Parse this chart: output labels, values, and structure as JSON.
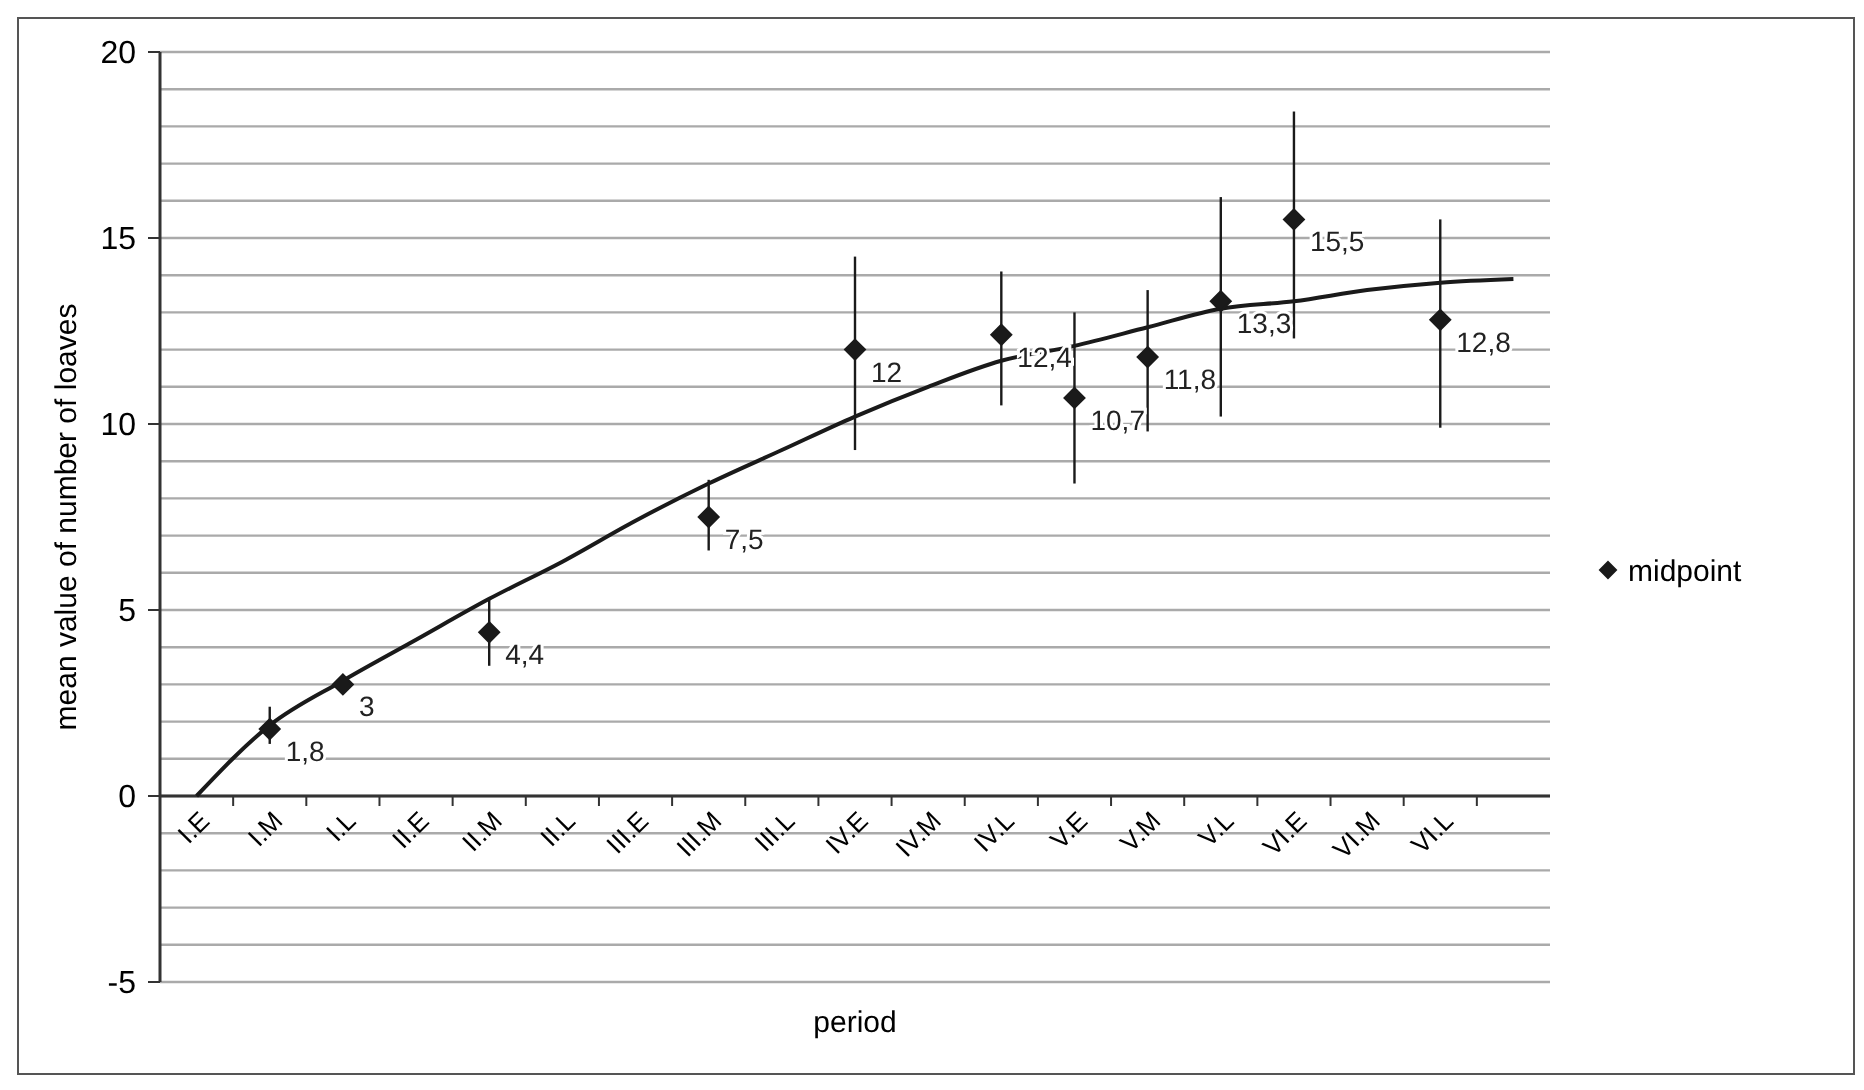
{
  "chart_data": {
    "type": "scatter",
    "xlabel": "period",
    "ylabel": "mean value of number of loaves",
    "categories": [
      "I.E",
      "I.M",
      "I.L",
      "II.E",
      "II.M",
      "II.L",
      "III.E",
      "III.M",
      "III.L",
      "IV.E",
      "IV.M",
      "IV.L",
      "V.E",
      "V.M",
      "V.L",
      "VI.E",
      "VI.M",
      "VI.L",
      null
    ],
    "series": [
      {
        "name": "midpoint",
        "marker": "diamond",
        "color": "#1a1a1a",
        "x": [
          "I.M",
          "I.L",
          "II.M",
          "III.M",
          "IV.E",
          "IV.L",
          "V.E",
          "V.M",
          "V.L",
          "VI.E",
          "VI.L"
        ],
        "values": [
          1.8,
          3,
          4.4,
          7.5,
          12,
          12.4,
          10.7,
          11.8,
          13.3,
          15.5,
          12.8
        ],
        "errors": [
          [
            1.4,
            2.4
          ],
          null,
          [
            3.5,
            5.3
          ],
          [
            6.6,
            8.5
          ],
          [
            9.3,
            14.5
          ],
          [
            10.5,
            14.1
          ],
          [
            8.4,
            13.0
          ],
          [
            9.8,
            13.6
          ],
          [
            10.2,
            16.1
          ],
          [
            12.3,
            18.4
          ],
          [
            9.9,
            15.5
          ]
        ],
        "value_labels": [
          "1,8",
          "3",
          "4,4",
          "7,5",
          "12",
          "12,4",
          "10,7",
          "11,8",
          "13,3",
          "15,5",
          "12,8"
        ]
      },
      {
        "type": "line",
        "color": "#1a1a1a",
        "values": [
          0,
          1.9,
          3.1,
          4.2,
          5.3,
          6.3,
          7.4,
          8.4,
          9.3,
          10.2,
          11.0,
          11.7,
          12.1,
          12.6,
          13.1,
          13.3,
          13.6,
          13.8,
          13.9
        ]
      }
    ],
    "ylim": [
      -5,
      20
    ],
    "yticks": [
      -5,
      {
        "value": -4,
        "label": null
      },
      {
        "value": -3,
        "label": null
      },
      {
        "value": -2,
        "label": null
      },
      {
        "value": -1,
        "label": null
      },
      0,
      {
        "value": 1,
        "label": null
      },
      {
        "value": 2,
        "label": null
      },
      {
        "value": 3,
        "label": null
      },
      {
        "value": 4,
        "label": null
      },
      5,
      {
        "value": 6,
        "label": null
      },
      {
        "value": 7,
        "label": null
      },
      {
        "value": 8,
        "label": null
      },
      {
        "value": 9,
        "label": null
      },
      10,
      {
        "value": 11,
        "label": null
      },
      {
        "value": 12,
        "label": null
      },
      {
        "value": 13,
        "label": null
      },
      {
        "value": 14,
        "label": null
      },
      15,
      {
        "value": 16,
        "label": null
      },
      {
        "value": 17,
        "label": null
      },
      {
        "value": 18,
        "label": null
      },
      {
        "value": 19,
        "label": null
      },
      20
    ],
    "grid": "y",
    "legend": "right",
    "line_style": "solid"
  }
}
